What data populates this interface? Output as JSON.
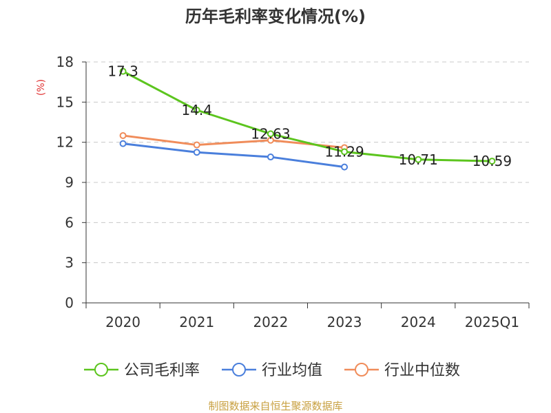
{
  "chart_data": {
    "type": "line",
    "title": "历年毛利率变化情况(%)",
    "xlabel": "",
    "ylabel": "(%)",
    "categories": [
      "2020",
      "2021",
      "2022",
      "2023",
      "2024",
      "2025Q1"
    ],
    "ylim": [
      0,
      18
    ],
    "yticks": [
      0,
      3,
      6,
      9,
      12,
      15,
      18
    ],
    "grid": true,
    "legend_position": "bottom",
    "series": [
      {
        "name": "公司毛利率",
        "color": "#5cc51e",
        "values": [
          17.3,
          14.4,
          12.63,
          11.29,
          10.71,
          10.59
        ],
        "labels": [
          "17.3",
          "14.4",
          "12.63",
          "11.29",
          "10.71",
          "10.59"
        ]
      },
      {
        "name": "行业均值",
        "color": "#4a7fdc",
        "values": [
          11.9,
          11.25,
          10.9,
          10.15,
          null,
          null
        ],
        "labels": []
      },
      {
        "name": "行业中位数",
        "color": "#f08c5a",
        "values": [
          12.5,
          11.8,
          12.15,
          11.6,
          null,
          null
        ],
        "labels": []
      }
    ]
  },
  "footer": {
    "source": "制图数据来自恒生聚源数据库"
  }
}
